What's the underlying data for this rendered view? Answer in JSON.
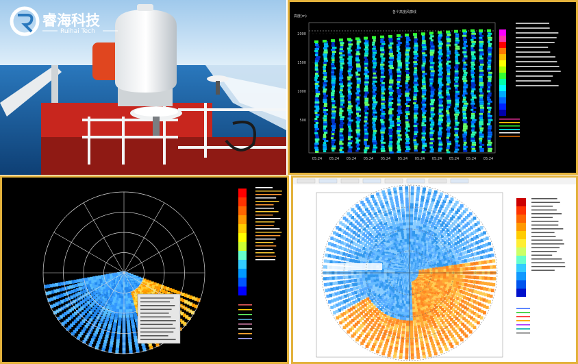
{
  "logo": {
    "brand_cn": "睿海科技",
    "brand_en": "Ruihai Tech"
  },
  "panel_timeheight": {
    "y_ticks": [
      "2000",
      "1500",
      "1000",
      "500"
    ],
    "x_ticks": [
      "05:24",
      "05:24",
      "05:24",
      "05:24",
      "05:24",
      "05:24",
      "05:24",
      "05:24",
      "05:24",
      "05:24",
      "05:24"
    ],
    "colorbar": [
      "#ff00ff",
      "#ff33aa",
      "#ff0000",
      "#ff7700",
      "#ffbb00",
      "#ffff00",
      "#aaff00",
      "#33ff33",
      "#00ffaa",
      "#00ffff",
      "#00aaff",
      "#0066ff",
      "#0022ff",
      "#0000aa"
    ]
  },
  "panel_ppi_dark": {
    "colorbar": [
      "#ff0000",
      "#ff3300",
      "#ff6600",
      "#ff9900",
      "#ffcc00",
      "#ffff00",
      "#ccff33",
      "#66ffcc",
      "#33ccff",
      "#0099ff",
      "#0055ff",
      "#0000ff"
    ]
  },
  "panel_ppi_light": {
    "colorbar": [
      "#cc0000",
      "#ff3300",
      "#ff6600",
      "#ff9900",
      "#ffcc00",
      "#ffee33",
      "#ccff66",
      "#66ffcc",
      "#33ccff",
      "#1199ff",
      "#0055ee",
      "#0011cc"
    ]
  },
  "colors": {
    "frame": "#e3b23c",
    "sea": "#1f6fb4",
    "sky": "#d6e9f7"
  }
}
